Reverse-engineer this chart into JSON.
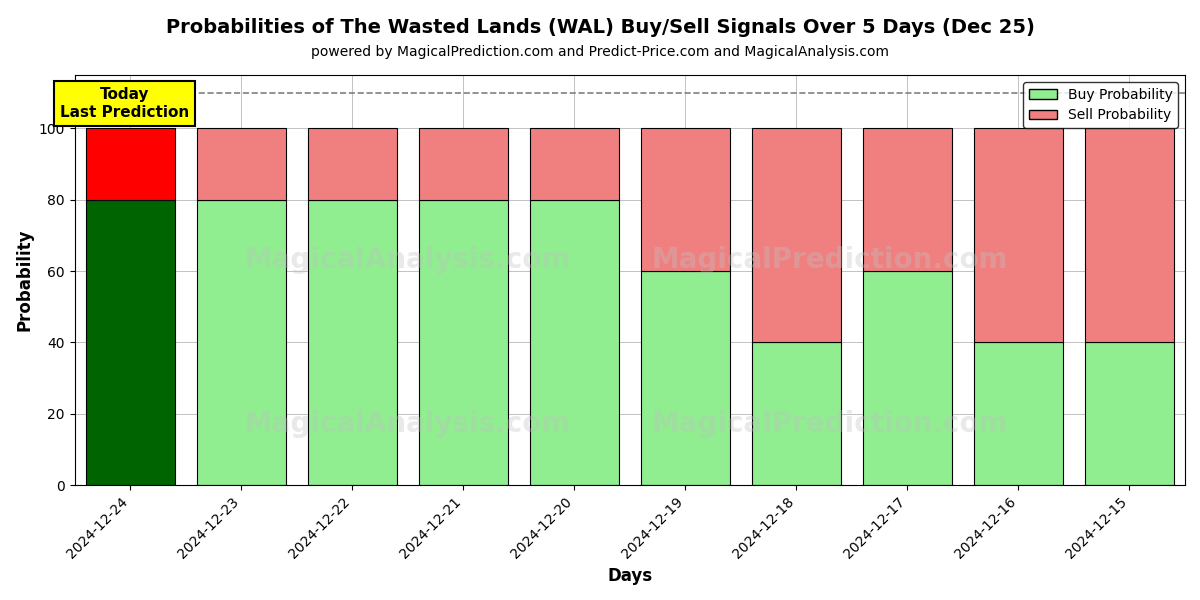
{
  "title": "Probabilities of The Wasted Lands (WAL) Buy/Sell Signals Over 5 Days (Dec 25)",
  "subtitle": "powered by MagicalPrediction.com and Predict-Price.com and MagicalAnalysis.com",
  "xlabel": "Days",
  "ylabel": "Probability",
  "watermark1": "MagicalAnalysis.com",
  "watermark2": "MagicalPrediction.com",
  "legend_buy": "Buy Probability",
  "legend_sell": "Sell Probability",
  "annotation_line1": "Today",
  "annotation_line2": "Last Prediction",
  "categories": [
    "2024-12-24",
    "2024-12-23",
    "2024-12-22",
    "2024-12-21",
    "2024-12-20",
    "2024-12-19",
    "2024-12-18",
    "2024-12-17",
    "2024-12-16",
    "2024-12-15"
  ],
  "buy_values": [
    80,
    80,
    80,
    80,
    80,
    60,
    40,
    60,
    40,
    40
  ],
  "sell_values": [
    20,
    20,
    20,
    20,
    20,
    40,
    60,
    40,
    60,
    60
  ],
  "today_idx": 0,
  "buy_color_today": "#006400",
  "sell_color_today": "#FF0000",
  "buy_color_normal": "#90EE90",
  "sell_color_normal": "#F08080",
  "annotation_bg": "#FFFF00",
  "annotation_edge": "#000000",
  "annotation_fontsize": 11,
  "bar_edge_color": "#000000",
  "bar_width": 0.8,
  "ylim": [
    0,
    115
  ],
  "yticks": [
    0,
    20,
    40,
    60,
    80,
    100
  ],
  "dashed_line_y": 110,
  "title_fontsize": 14,
  "subtitle_fontsize": 10,
  "axis_label_fontsize": 12,
  "tick_fontsize": 10,
  "legend_fontsize": 10,
  "grid_color": "#AAAAAA",
  "grid_linewidth": 0.5,
  "background_color": "#FFFFFF",
  "watermark_color": "#C0C0C0",
  "watermark_alpha": 0.35,
  "watermark_fontsize": 20
}
